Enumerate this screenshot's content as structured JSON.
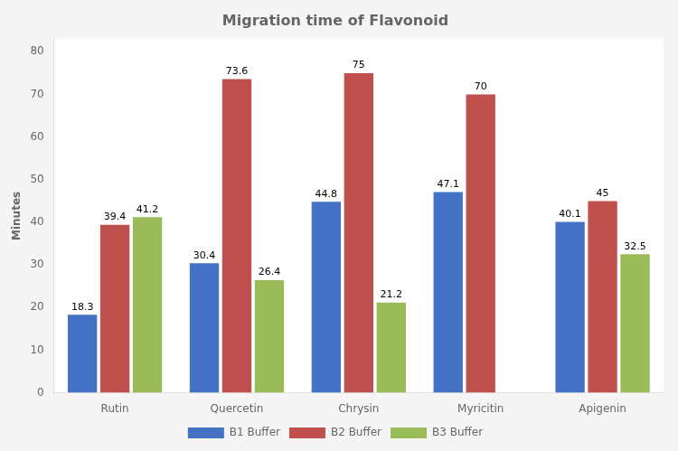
{
  "chart_data": {
    "type": "bar",
    "title": "Migration time of Flavonoid",
    "ylabel": "Minutes",
    "categories": [
      "Rutin",
      "Quercetin",
      "Chrysin",
      "Myricitin",
      "Apigenin"
    ],
    "series": [
      {
        "name": "B1 Buffer",
        "values": [
          18.3,
          30.4,
          44.8,
          47.1,
          40.1
        ],
        "color": "#4472c4"
      },
      {
        "name": "B2 Buffer",
        "values": [
          39.4,
          73.6,
          75,
          70,
          45
        ],
        "color": "#c0504d"
      },
      {
        "name": "B3 Buffer",
        "values": [
          41.2,
          26.4,
          21.2,
          null,
          32.5
        ],
        "color": "#9bbb59"
      }
    ],
    "ylim": [
      0,
      83
    ],
    "yticks": [
      0,
      10,
      20,
      30,
      40,
      50,
      60,
      70,
      80
    ],
    "grid": false,
    "legend": "bottom",
    "data_labels": true
  }
}
